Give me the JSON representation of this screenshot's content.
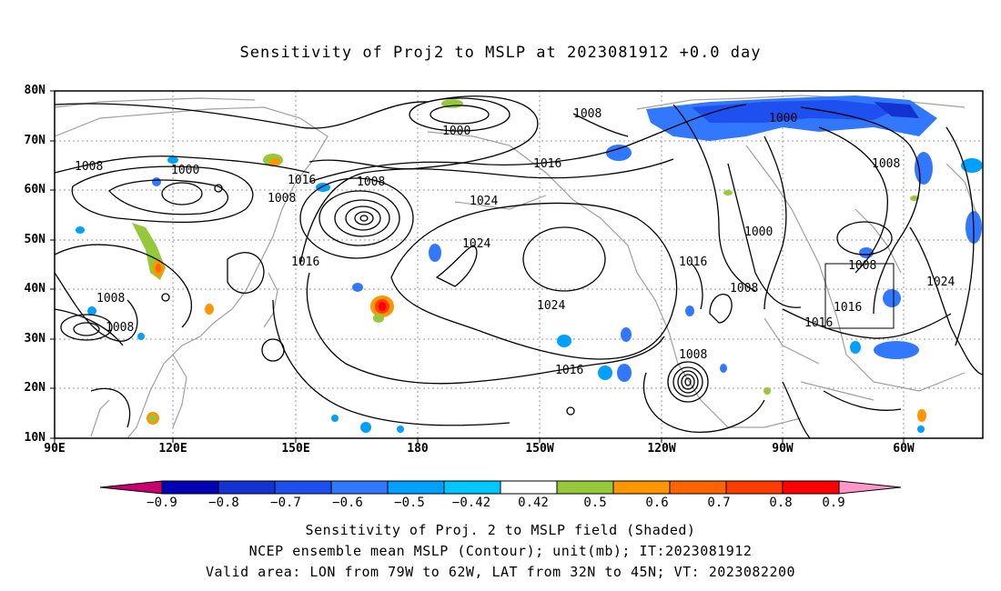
{
  "title": "Sensitivity of Proj2 to MSLP at 2023081912 +0.0 day",
  "lat_labels": [
    "80N",
    "70N",
    "60N",
    "50N",
    "40N",
    "30N",
    "20N",
    "10N"
  ],
  "lon_labels": [
    "90E",
    "120E",
    "150E",
    "180",
    "150W",
    "120W",
    "90W",
    "60W"
  ],
  "contour_labels": [
    {
      "text": "1000"
    },
    {
      "text": "1008"
    },
    {
      "text": "1000"
    },
    {
      "text": "1008"
    },
    {
      "text": "1016"
    },
    {
      "text": "1008"
    },
    {
      "text": "1008"
    },
    {
      "text": "1016"
    },
    {
      "text": "1024"
    },
    {
      "text": "1024"
    },
    {
      "text": "1016"
    },
    {
      "text": "1008"
    },
    {
      "text": "1008"
    },
    {
      "text": "1024"
    },
    {
      "text": "1016"
    },
    {
      "text": "1008"
    },
    {
      "text": "1016"
    },
    {
      "text": "1000"
    },
    {
      "text": "1008"
    },
    {
      "text": "1000"
    },
    {
      "text": "1008"
    },
    {
      "text": "1008"
    },
    {
      "text": "1016"
    },
    {
      "text": "1016"
    },
    {
      "text": "1024"
    }
  ],
  "colorbar": {
    "colors": [
      "#c8006e",
      "#0000b4",
      "#1432d2",
      "#1e50f0",
      "#3278ff",
      "#00a0ff",
      "#00c8ff",
      "#ffffff",
      "#96c83c",
      "#ff9600",
      "#ff6400",
      "#ff3c00",
      "#ff0000",
      "#ff96c8"
    ],
    "labels": [
      "−0.9",
      "−0.8",
      "−0.7",
      "−0.6",
      "−0.5",
      "−0.42",
      "0.42",
      "0.5",
      "0.6",
      "0.7",
      "0.8",
      "0.9"
    ]
  },
  "footer": [
    "Sensitivity of Proj. 2 to MSLP field (Shaded)",
    "NCEP ensemble mean MSLP (Contour); unit(mb); IT:2023081912",
    "Valid area: LON from 79W to 62W, LAT from 32N to 45N; VT: 2023082200"
  ]
}
